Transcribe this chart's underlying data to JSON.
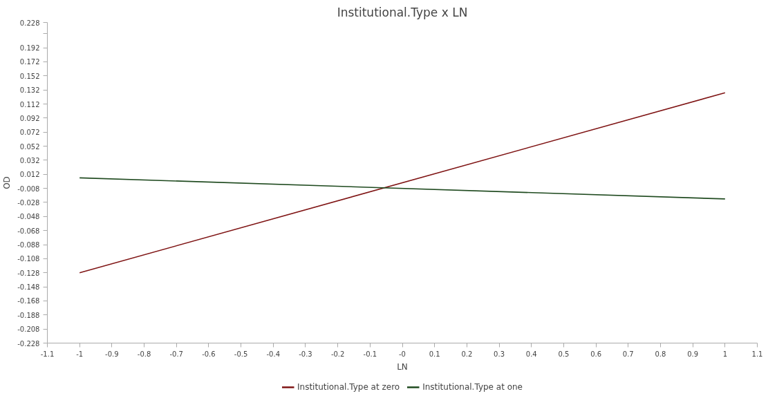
{
  "chart_data": {
    "type": "line",
    "title": "Institutional.Type x LN",
    "xlabel": "LN",
    "ylabel": "OD",
    "x": [
      -1,
      1
    ],
    "series": [
      {
        "name": "Institutional.Type at zero",
        "color": "#7f1414",
        "values": [
          -0.128,
          0.128
        ]
      },
      {
        "name": "Institutional.Type at one",
        "color": "#1f4a1f",
        "values": [
          0.007,
          -0.023
        ]
      }
    ],
    "xlim": [
      -1.1,
      1.1
    ],
    "xticks": [
      -1.1,
      -1,
      -0.9,
      -0.8,
      -0.7,
      -0.6,
      -0.5,
      -0.4,
      -0.3,
      -0.2,
      -0.1,
      {
        "value": 0,
        "label": "-0"
      },
      0.1,
      0.2,
      0.3,
      0.4,
      0.5,
      0.6,
      0.7,
      0.8,
      0.9,
      1,
      1.1
    ],
    "ylim": [
      -0.228,
      0.228
    ],
    "yticks": [
      -0.228,
      -0.208,
      -0.188,
      -0.168,
      -0.148,
      -0.128,
      -0.108,
      -0.088,
      -0.068,
      -0.048,
      -0.028,
      -0.008,
      0.012,
      0.032,
      0.052,
      0.072,
      0.092,
      0.112,
      0.132,
      0.152,
      0.172,
      0.192,
      {
        "value": 0.212,
        "label": null
      },
      0.228
    ],
    "grid": false,
    "legend": "bottom",
    "marker": "none",
    "line_style": "solid"
  }
}
